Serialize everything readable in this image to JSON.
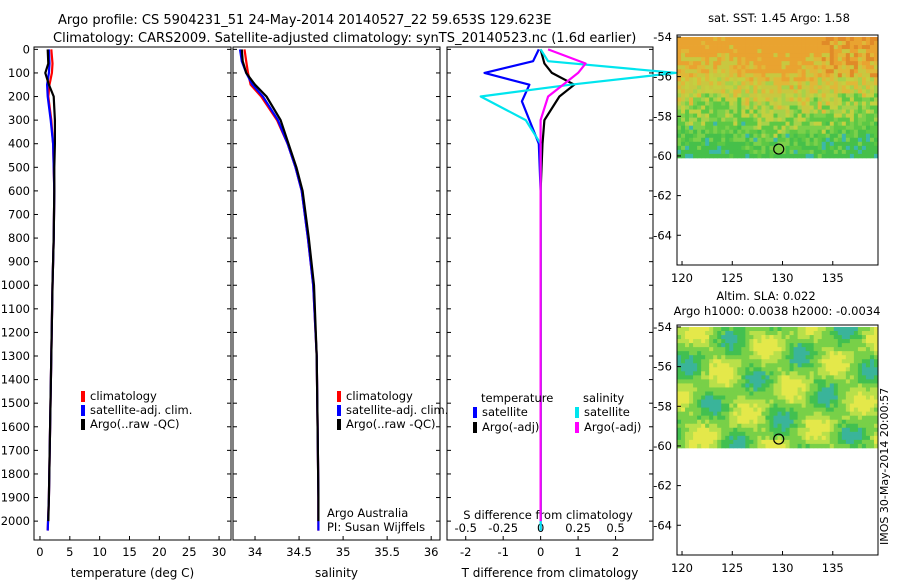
{
  "header": {
    "line1": "Argo profile: CS 5904231_51 24-May-2014 20140527_22 59.653S 129.623E",
    "line2": "Climatology: CARS2009. Satellite-adjusted climatology: synTS_20140523.nc (1.6d earlier)"
  },
  "footer_stamp": "IMOS 30-May-2014 20:00:57",
  "colors": {
    "climatology": "#ff0000",
    "satellite": "#0000ff",
    "argo": "#000000",
    "sat_salinity": "#00e5ee",
    "argo_salinity": "#ff00ff"
  },
  "chart_data": [
    {
      "id": "temperature",
      "type": "line",
      "xlabel": "temperature (deg C)",
      "ylabel": "",
      "xlim": [
        -1,
        32
      ],
      "ylim": [
        2080,
        -10
      ],
      "xticks": [
        "0",
        "5",
        "10",
        "15",
        "20",
        "25",
        "30"
      ],
      "yticks": [
        "0",
        "100",
        "200",
        "300",
        "400",
        "500",
        "600",
        "700",
        "800",
        "900",
        "1000",
        "1100",
        "1200",
        "1300",
        "1400",
        "1500",
        "1600",
        "1700",
        "1800",
        "1900",
        "2000"
      ],
      "legend": [
        "climatology",
        "satellite-adj. clim.",
        "Argo(..raw -QC)"
      ],
      "series": [
        {
          "name": "climatology",
          "x": [
            1.9,
            2.1,
            2.0,
            1.6,
            1.4,
            1.9,
            2.2,
            2.3,
            2.4,
            2.3,
            2.1,
            1.9,
            1.7,
            1.5,
            1.3
          ],
          "y": [
            0,
            60,
            100,
            150,
            200,
            300,
            400,
            500,
            600,
            800,
            1000,
            1300,
            1600,
            1900,
            2040
          ]
        },
        {
          "name": "satellite-adj. clim.",
          "x": [
            1.5,
            1.6,
            1.5,
            1.2,
            1.3,
            1.8,
            2.2,
            2.3,
            2.4,
            2.3,
            2.1,
            1.9,
            1.7,
            1.5,
            1.3
          ],
          "y": [
            0,
            60,
            100,
            150,
            200,
            300,
            400,
            500,
            600,
            800,
            1000,
            1300,
            1600,
            1900,
            2040
          ]
        },
        {
          "name": "Argo(..raw -QC)",
          "x": [
            1.3,
            1.4,
            0.9,
            1.5,
            2.3,
            2.5,
            2.5,
            2.4,
            2.4,
            2.3,
            2.1,
            1.9,
            1.7,
            1.5,
            1.4
          ],
          "y": [
            0,
            60,
            100,
            150,
            200,
            300,
            400,
            500,
            600,
            800,
            1000,
            1300,
            1600,
            1900,
            2000
          ]
        }
      ]
    },
    {
      "id": "salinity",
      "type": "line",
      "xlabel": "salinity",
      "xlim": [
        33.75,
        36.1
      ],
      "ylim": [
        2080,
        -10
      ],
      "xticks": [
        "34",
        "34.5",
        "35",
        "35.5",
        "36"
      ],
      "legend": [
        "climatology",
        "satellite-adj. clim.",
        "Argo(..raw -QC)"
      ],
      "annotation": [
        "Argo Australia",
        "PI: Susan Wijffels"
      ],
      "series": [
        {
          "name": "climatology",
          "x": [
            33.88,
            33.9,
            33.92,
            33.95,
            34.07,
            34.25,
            34.37,
            34.46,
            34.53,
            34.6,
            34.66,
            34.7,
            34.71,
            34.72,
            34.72
          ],
          "y": [
            0,
            50,
            100,
            150,
            200,
            300,
            400,
            500,
            600,
            800,
            1000,
            1300,
            1600,
            1900,
            2040
          ]
        },
        {
          "name": "satellite-adj. clim.",
          "x": [
            33.83,
            33.85,
            33.9,
            33.97,
            34.09,
            34.26,
            34.37,
            34.46,
            34.53,
            34.6,
            34.66,
            34.7,
            34.71,
            34.72,
            34.72
          ],
          "y": [
            0,
            50,
            100,
            150,
            200,
            300,
            400,
            500,
            600,
            800,
            1000,
            1300,
            1600,
            1900,
            2040
          ]
        },
        {
          "name": "Argo(..raw -QC)",
          "x": [
            33.85,
            33.86,
            33.9,
            34.0,
            34.13,
            34.29,
            34.38,
            34.47,
            34.54,
            34.61,
            34.67,
            34.7,
            34.71,
            34.72,
            34.72
          ],
          "y": [
            0,
            50,
            100,
            150,
            200,
            300,
            400,
            500,
            600,
            800,
            1000,
            1300,
            1600,
            1900,
            2000
          ]
        }
      ]
    },
    {
      "id": "difference",
      "type": "line",
      "xlabel": "T difference from climatology",
      "xlabel_top": "S difference from climatology",
      "xlim": [
        -2.5,
        3
      ],
      "ylim": [
        2080,
        -10
      ],
      "xticks": [
        "-2",
        "-1",
        "0",
        "1",
        "2"
      ],
      "xticks_top": [
        "-0.5",
        "-0.25",
        "0",
        "0.25",
        "0.5"
      ],
      "legend_headers": [
        "temperature",
        "salinity"
      ],
      "legend": [
        "satellite",
        "Argo(-adj)",
        "satellite",
        "Argo(-adj)"
      ],
      "series": [
        {
          "name": "satellite",
          "group": "temperature",
          "x": [
            -0.05,
            -0.2,
            -1.5,
            -0.3,
            -0.5,
            -0.3,
            -0.05,
            0,
            0,
            0,
            0
          ],
          "y": [
            0,
            50,
            100,
            150,
            220,
            300,
            400,
            600,
            1000,
            1500,
            2040
          ]
        },
        {
          "name": "Argo(-adj)",
          "group": "temperature",
          "x": [
            0,
            0.1,
            0.3,
            0.9,
            0.5,
            0.1,
            0.05,
            0,
            0,
            0,
            0
          ],
          "y": [
            0,
            60,
            100,
            150,
            200,
            300,
            400,
            600,
            1000,
            1500,
            2000
          ]
        },
        {
          "name": "satellite",
          "group": "salinity",
          "x": [
            0,
            0.05,
            0.9,
            0.2,
            -0.4,
            -0.1,
            0,
            0,
            0,
            0,
            0
          ],
          "y": [
            0,
            50,
            100,
            150,
            200,
            300,
            400,
            600,
            1000,
            1500,
            2040
          ]
        },
        {
          "name": "Argo(-adj)",
          "group": "salinity",
          "x": [
            0.05,
            0.3,
            0.25,
            0.15,
            0.05,
            0,
            0,
            0,
            0,
            0,
            0
          ],
          "y": [
            0,
            60,
            100,
            150,
            200,
            300,
            400,
            600,
            1000,
            1500,
            2000
          ]
        }
      ]
    },
    {
      "id": "sst-map",
      "type": "heatmap",
      "title": "sat. SST: 1.45 Argo: 1.58",
      "xticks": [
        "120",
        "125",
        "130",
        "135"
      ],
      "yticks": [
        "-54",
        "-56",
        "-58",
        "-60",
        "-62",
        "-64"
      ],
      "xlim": [
        119.5,
        139.5
      ],
      "ylim": [
        -65.5,
        -53.9
      ],
      "data_ylim": [
        -54,
        -60.1
      ],
      "profile_location": [
        129.623,
        -59.653
      ]
    },
    {
      "id": "sla-map",
      "type": "heatmap",
      "title": [
        "Altim. SLA: 0.022",
        "Argo h1000: 0.0038 h2000: -0.0034"
      ],
      "xticks": [
        "120",
        "125",
        "130",
        "135"
      ],
      "yticks": [
        "-54",
        "-56",
        "-58",
        "-60",
        "-62",
        "-64"
      ],
      "xlim": [
        119.5,
        139.5
      ],
      "ylim": [
        -65.5,
        -53.9
      ],
      "data_ylim": [
        -54,
        -60.1
      ],
      "profile_location": [
        129.623,
        -59.653
      ]
    }
  ]
}
